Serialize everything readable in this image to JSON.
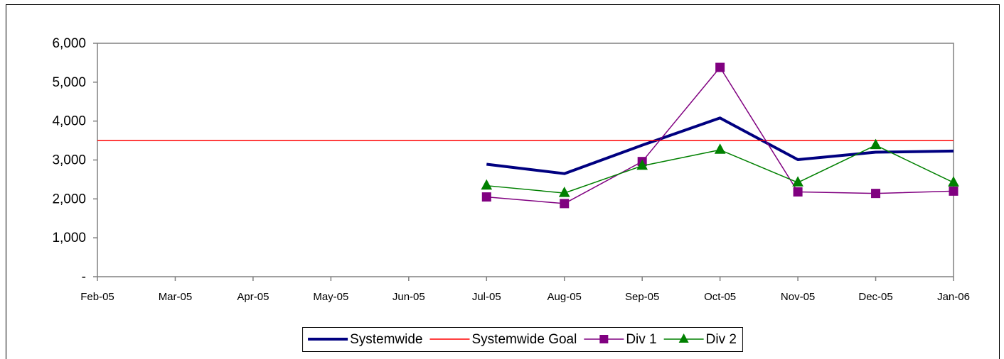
{
  "chart_data": {
    "type": "line",
    "categories": [
      "Feb-05",
      "Mar-05",
      "Apr-05",
      "May-05",
      "Jun-05",
      "Jul-05",
      "Aug-05",
      "Sep-05",
      "Oct-05",
      "Nov-05",
      "Dec-05",
      "Jan-06"
    ],
    "series": [
      {
        "name": "Systemwide",
        "color": "#000080",
        "marker": null,
        "values": [
          null,
          null,
          null,
          null,
          null,
          2890,
          2650,
          3380,
          4080,
          3010,
          3200,
          3230
        ]
      },
      {
        "name": "Systemwide Goal",
        "color": "#ff0000",
        "marker": null,
        "values": [
          3500,
          3500,
          3500,
          3500,
          3500,
          3500,
          3500,
          3500,
          3500,
          3500,
          3500,
          3500
        ]
      },
      {
        "name": "Div 1",
        "color": "#800080",
        "marker": "square",
        "values": [
          null,
          null,
          null,
          null,
          null,
          2050,
          1880,
          2960,
          5380,
          2180,
          2140,
          2200
        ]
      },
      {
        "name": "Div 2",
        "color": "#008000",
        "marker": "triangle",
        "values": [
          null,
          null,
          null,
          null,
          null,
          2340,
          2150,
          2850,
          3260,
          2420,
          3380,
          2420
        ]
      }
    ],
    "ylim": [
      0,
      6000
    ],
    "yticks": [
      {
        "value": 0,
        "label": "-"
      },
      {
        "value": 1000,
        "label": "1,000"
      },
      {
        "value": 2000,
        "label": "2,000"
      },
      {
        "value": 3000,
        "label": "3,000"
      },
      {
        "value": 4000,
        "label": "4,000"
      },
      {
        "value": 5000,
        "label": "5,000"
      },
      {
        "value": 6000,
        "label": "6,000"
      }
    ],
    "grid": false,
    "legend": "bottom"
  }
}
